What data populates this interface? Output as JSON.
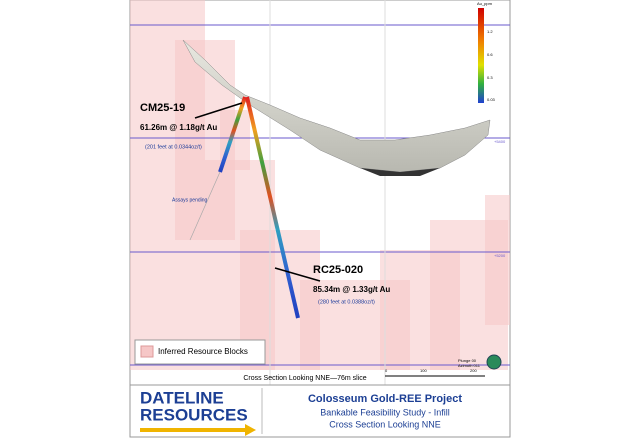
{
  "section": {
    "legend_title": "Au_ppm",
    "legend_ticks": [
      "1.2",
      "0.6",
      "0.3",
      "0.03"
    ],
    "elevations": [
      "+5400",
      "+5200"
    ],
    "holes": [
      {
        "name": "CM25-19",
        "intercept": "61.26m @ 1.18g/t Au",
        "imperial": "(201 feet at 0.0344oz/t)",
        "note": "Assays pending"
      },
      {
        "name": "RC25-020",
        "intercept": "85.34m @ 1.33g/t Au",
        "imperial": "(280 feet at 0.0388oz/t)"
      }
    ],
    "block_legend": "Inferred Resource Blocks",
    "slice": "Cross Section Looking NNE—76m slice",
    "scale": [
      "0",
      "100",
      "200"
    ],
    "orientation": [
      "Plunge 00",
      "Azimuth 011"
    ]
  },
  "footer": {
    "logo": [
      "DATELINE",
      "RESOURCES"
    ],
    "title": "Colosseum Gold-REE Project",
    "lines": [
      "Bankable Feasibility Study - Infill",
      "Cross Section Looking NNE"
    ]
  }
}
